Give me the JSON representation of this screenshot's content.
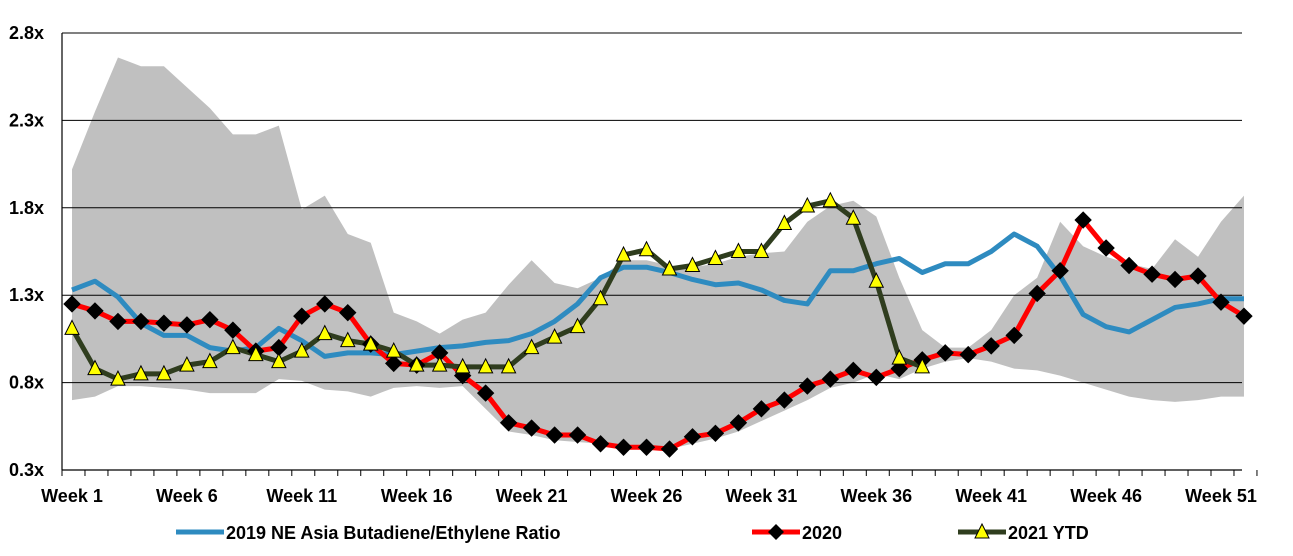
{
  "chart_data": {
    "type": "line",
    "x_tick_labels": [
      "Week 1",
      "Week 6",
      "Week 11",
      "Week 16",
      "Week 21",
      "Week 26",
      "Week 31",
      "Week 36",
      "Week 41",
      "Week 46",
      "Week 51"
    ],
    "y_tick_labels": [
      "0.3x",
      "0.8x",
      "1.3x",
      "1.8x",
      "2.3x",
      "2.8x"
    ],
    "ylim": [
      0.3,
      2.8
    ],
    "x_range": [
      1,
      52
    ],
    "grid": "horizontal",
    "legend_position": "bottom",
    "band": {
      "fill_color": "#c0c0c0",
      "upper": [
        2.02,
        2.35,
        2.66,
        2.61,
        2.61,
        2.49,
        2.37,
        2.22,
        2.22,
        2.27,
        1.79,
        1.87,
        1.65,
        1.6,
        1.2,
        1.15,
        1.08,
        1.16,
        1.2,
        1.36,
        1.5,
        1.37,
        1.34,
        1.4,
        1.5,
        1.5,
        1.47,
        1.46,
        1.48,
        1.52,
        1.54,
        1.55,
        1.72,
        1.81,
        1.84,
        1.75,
        1.4,
        1.1,
        1.0,
        1.0,
        1.1,
        1.3,
        1.4,
        1.72,
        1.58,
        1.52,
        1.48,
        1.45,
        1.62,
        1.52,
        1.72,
        1.87
      ],
      "lower": [
        0.7,
        0.72,
        0.78,
        0.78,
        0.77,
        0.76,
        0.74,
        0.74,
        0.74,
        0.82,
        0.81,
        0.76,
        0.75,
        0.72,
        0.77,
        0.78,
        0.77,
        0.78,
        0.65,
        0.52,
        0.5,
        0.47,
        0.46,
        0.45,
        0.43,
        0.43,
        0.42,
        0.45,
        0.48,
        0.52,
        0.58,
        0.64,
        0.7,
        0.77,
        0.8,
        0.85,
        0.82,
        0.88,
        0.92,
        0.94,
        0.92,
        0.88,
        0.87,
        0.84,
        0.8,
        0.76,
        0.72,
        0.7,
        0.69,
        0.7,
        0.72,
        0.72
      ]
    },
    "series": [
      {
        "name": "2019 NE Asia Butadiene/Ethylene Ratio",
        "color": "#2e8bc0",
        "marker": "none",
        "values": [
          1.33,
          1.38,
          1.29,
          1.14,
          1.07,
          1.07,
          1.0,
          0.98,
          1.0,
          1.11,
          1.04,
          0.95,
          0.97,
          0.97,
          0.96,
          0.98,
          1.0,
          1.01,
          1.03,
          1.04,
          1.08,
          1.15,
          1.25,
          1.4,
          1.46,
          1.46,
          1.43,
          1.39,
          1.36,
          1.37,
          1.33,
          1.27,
          1.25,
          1.44,
          1.44,
          1.48,
          1.51,
          1.43,
          1.48,
          1.48,
          1.55,
          1.65,
          1.58,
          1.41,
          1.19,
          1.12,
          1.09,
          1.16,
          1.23,
          1.25,
          1.28,
          1.28
        ]
      },
      {
        "name": "2020",
        "color": "#ff0000",
        "marker": "diamond",
        "values": [
          1.25,
          1.21,
          1.15,
          1.15,
          1.14,
          1.13,
          1.16,
          1.1,
          0.98,
          1.0,
          1.18,
          1.25,
          1.2,
          1.02,
          0.91,
          0.9,
          0.97,
          0.84,
          0.74,
          0.57,
          0.54,
          0.5,
          0.5,
          0.45,
          0.43,
          0.43,
          0.42,
          0.49,
          0.51,
          0.57,
          0.65,
          0.7,
          0.78,
          0.82,
          0.87,
          0.83,
          0.88,
          0.93,
          0.97,
          0.96,
          1.01,
          1.07,
          1.31,
          1.44,
          1.73,
          1.57,
          1.47,
          1.42,
          1.39,
          1.41,
          1.26,
          1.18
        ]
      },
      {
        "name": "2021 YTD",
        "color": "#2f3d1e",
        "marker": "triangle",
        "marker_fill": "#ffff00",
        "values": [
          1.11,
          0.88,
          0.82,
          0.85,
          0.85,
          0.9,
          0.92,
          1.0,
          0.96,
          0.92,
          0.98,
          1.08,
          1.04,
          1.02,
          0.98,
          0.9,
          0.9,
          0.89,
          0.89,
          0.89,
          1.0,
          1.06,
          1.12,
          1.28,
          1.53,
          1.56,
          1.45,
          1.47,
          1.51,
          1.55,
          1.55,
          1.71,
          1.81,
          1.84,
          1.74,
          1.38,
          0.94,
          0.89
        ]
      }
    ]
  }
}
